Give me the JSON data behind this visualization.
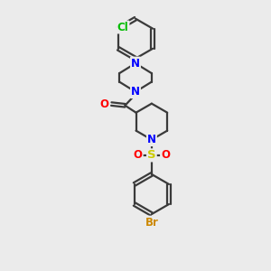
{
  "background_color": "#ebebeb",
  "bond_color": "#3a3a3a",
  "N_color": "#0000FF",
  "O_color": "#FF0000",
  "S_color": "#CCCC00",
  "Cl_color": "#00BB00",
  "Br_color": "#CC8800",
  "line_width": 1.6,
  "font_size": 8.5,
  "xlim": [
    0,
    10
  ],
  "ylim": [
    0,
    14
  ]
}
